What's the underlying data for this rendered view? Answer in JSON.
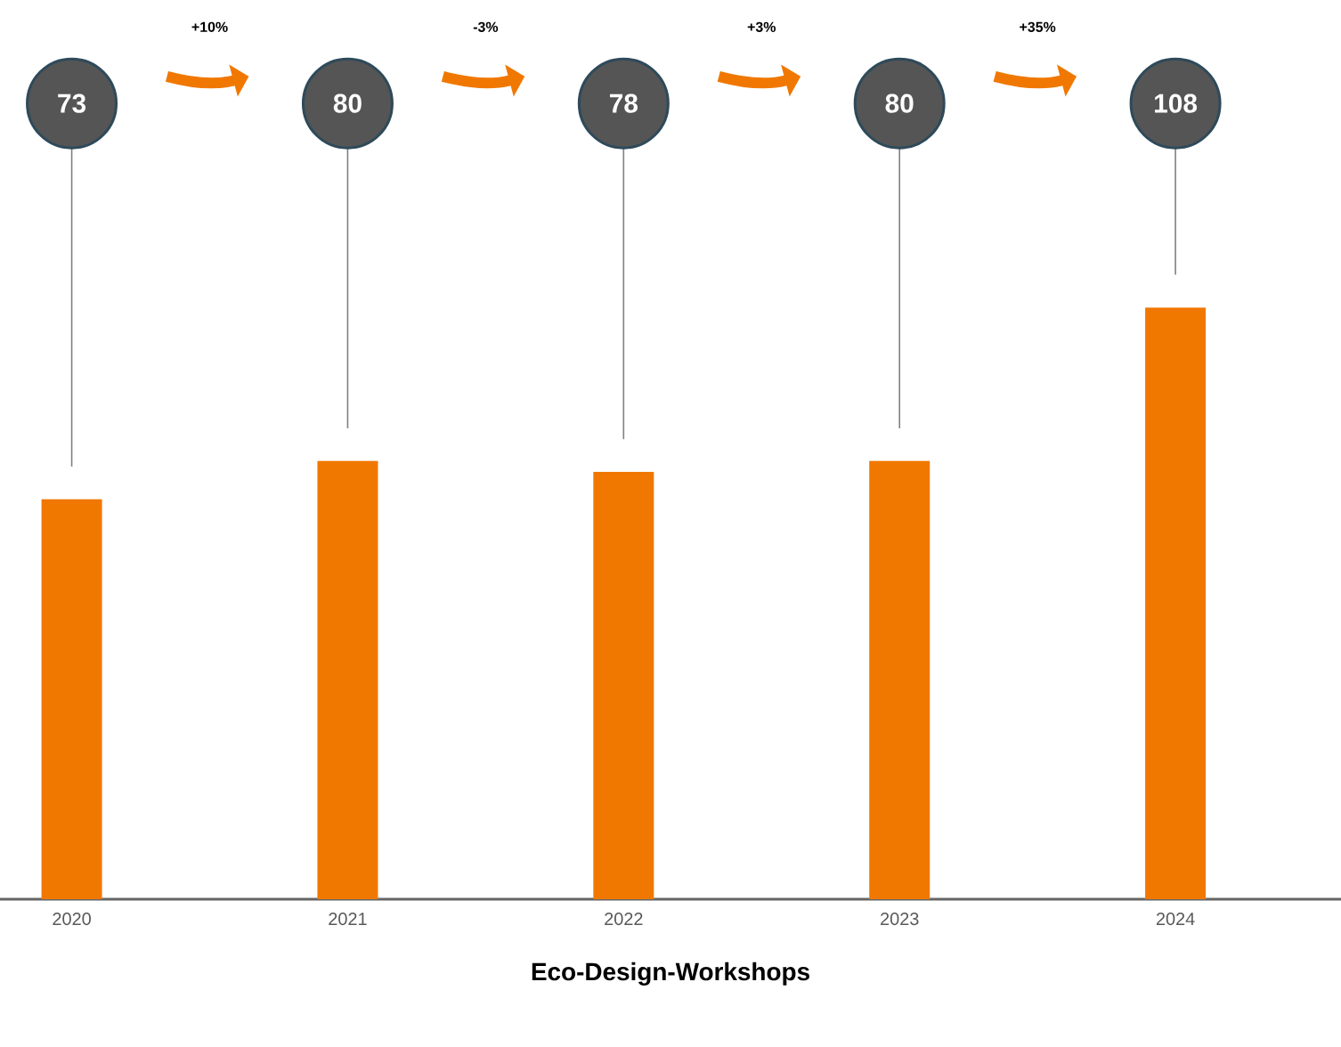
{
  "chart_data": {
    "type": "bar",
    "xlabel": "Eco-Design-Workshops",
    "categories": [
      "2020",
      "2021",
      "2022",
      "2023",
      "2024"
    ],
    "values": [
      73,
      80,
      78,
      80,
      108
    ],
    "color": "#f07800",
    "data_labels": true,
    "annotations": [
      "+10%",
      "-3%",
      "+3%",
      "+35%"
    ]
  }
}
